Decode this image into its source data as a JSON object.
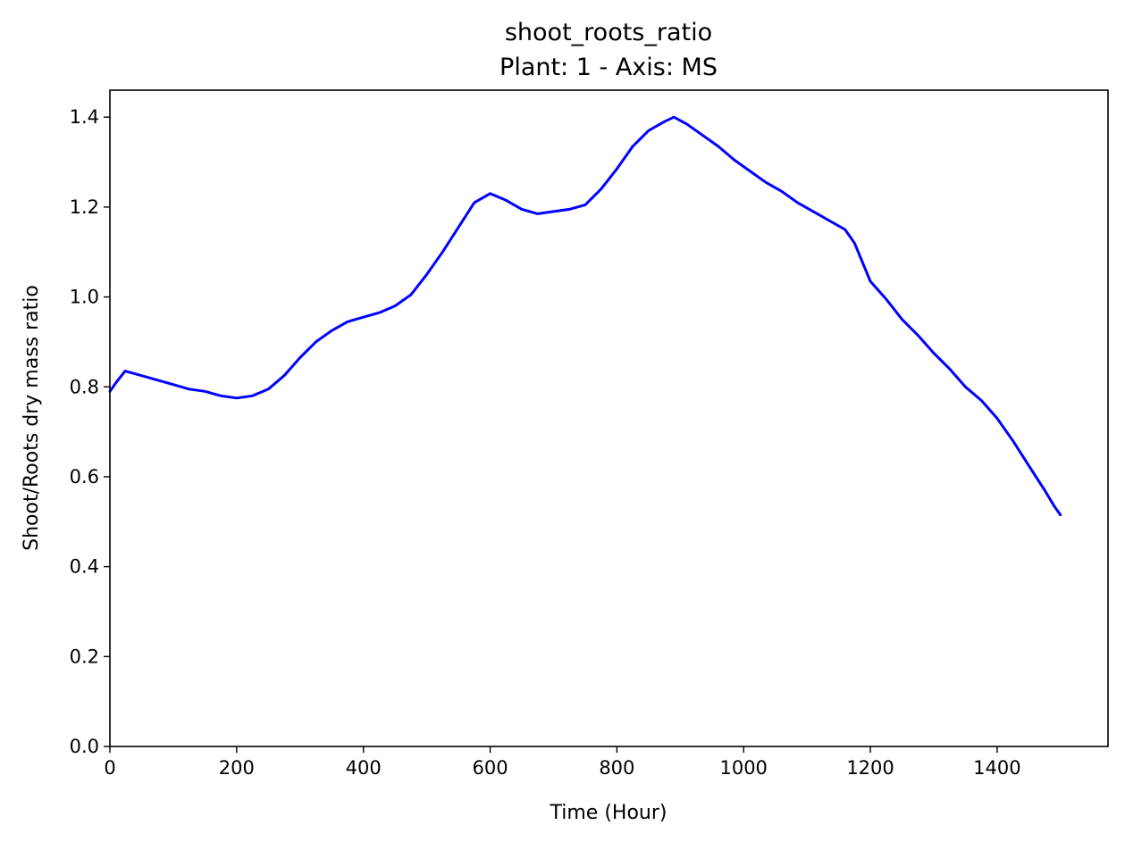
{
  "chart_data": {
    "type": "line",
    "title": "shoot_roots_ratio",
    "subtitle": "Plant: 1 - Axis: MS",
    "xlabel": "Time (Hour)",
    "ylabel": "Shoot/Roots dry mass ratio",
    "xlim": [
      0,
      1575
    ],
    "ylim": [
      0,
      1.46
    ],
    "xticks": [
      0,
      200,
      400,
      600,
      800,
      1000,
      1200,
      1400
    ],
    "xtick_labels": [
      "0",
      "200",
      "400",
      "600",
      "800",
      "1000",
      "1200",
      "1400"
    ],
    "yticks": [
      0.0,
      0.2,
      0.4,
      0.6,
      0.8,
      1.0,
      1.2,
      1.4
    ],
    "ytick_labels": [
      "0.0",
      "0.2",
      "0.4",
      "0.6",
      "0.8",
      "1.0",
      "1.2",
      "1.4"
    ],
    "grid": false,
    "series": [
      {
        "color": "#0000ff",
        "x": [
          0,
          10,
          24,
          50,
          75,
          100,
          125,
          150,
          175,
          200,
          225,
          250,
          275,
          300,
          325,
          350,
          375,
          400,
          425,
          450,
          475,
          500,
          525,
          550,
          575,
          600,
          625,
          650,
          675,
          700,
          725,
          750,
          775,
          800,
          825,
          850,
          875,
          890,
          910,
          935,
          960,
          985,
          1010,
          1035,
          1060,
          1085,
          1110,
          1135,
          1160,
          1175,
          1200,
          1225,
          1250,
          1275,
          1300,
          1325,
          1350,
          1375,
          1400,
          1425,
          1450,
          1475,
          1490,
          1500
        ],
        "y": [
          0.79,
          0.81,
          0.835,
          0.825,
          0.815,
          0.805,
          0.795,
          0.79,
          0.78,
          0.775,
          0.78,
          0.795,
          0.825,
          0.865,
          0.9,
          0.925,
          0.945,
          0.955,
          0.965,
          0.98,
          1.005,
          1.05,
          1.1,
          1.155,
          1.21,
          1.23,
          1.215,
          1.195,
          1.185,
          1.19,
          1.195,
          1.205,
          1.24,
          1.285,
          1.335,
          1.37,
          1.39,
          1.4,
          1.385,
          1.36,
          1.335,
          1.305,
          1.28,
          1.255,
          1.235,
          1.21,
          1.19,
          1.17,
          1.15,
          1.12,
          1.035,
          0.995,
          0.95,
          0.915,
          0.875,
          0.84,
          0.8,
          0.77,
          0.73,
          0.68,
          0.625,
          0.57,
          0.535,
          0.515
        ]
      }
    ]
  }
}
